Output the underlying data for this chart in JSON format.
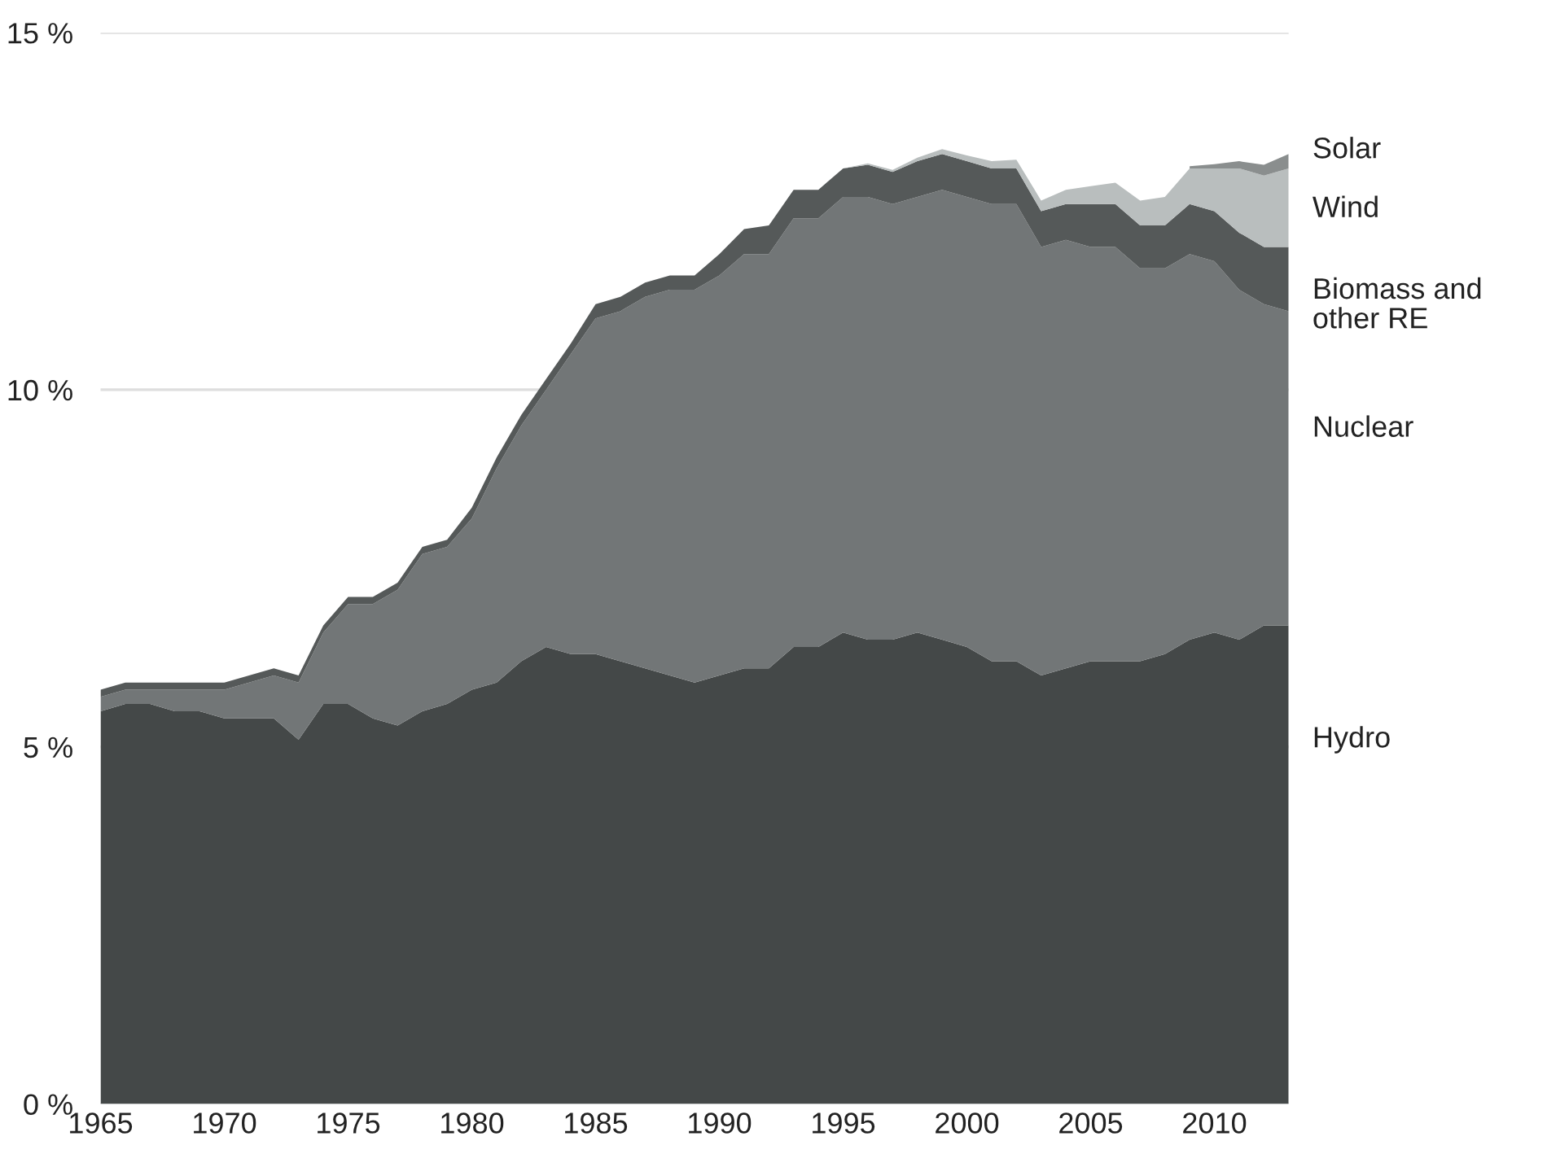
{
  "chart_data": {
    "type": "area",
    "stacked": true,
    "x": [
      1965,
      1966,
      1967,
      1968,
      1969,
      1970,
      1971,
      1972,
      1973,
      1974,
      1975,
      1976,
      1977,
      1978,
      1979,
      1980,
      1981,
      1982,
      1983,
      1984,
      1985,
      1986,
      1987,
      1988,
      1989,
      1990,
      1991,
      1992,
      1993,
      1994,
      1995,
      1996,
      1997,
      1998,
      1999,
      2000,
      2001,
      2002,
      2003,
      2004,
      2005,
      2006,
      2007,
      2008,
      2009,
      2010,
      2011,
      2012,
      2013
    ],
    "series": [
      {
        "name": "Hydro",
        "color": "#444848",
        "values": [
          5.5,
          5.6,
          5.6,
          5.5,
          5.5,
          5.4,
          5.4,
          5.4,
          5.1,
          5.6,
          5.6,
          5.4,
          5.3,
          5.5,
          5.6,
          5.8,
          5.9,
          6.2,
          6.4,
          6.3,
          6.3,
          6.2,
          6.1,
          6.0,
          5.9,
          6.0,
          6.1,
          6.1,
          6.4,
          6.4,
          6.6,
          6.5,
          6.5,
          6.6,
          6.5,
          6.4,
          6.2,
          6.2,
          6.0,
          6.1,
          6.2,
          6.2,
          6.2,
          6.3,
          6.5,
          6.6,
          6.5,
          6.7,
          6.7
        ]
      },
      {
        "name": "Nuclear",
        "color": "#727677",
        "values": [
          0.2,
          0.2,
          0.2,
          0.3,
          0.3,
          0.4,
          0.5,
          0.6,
          0.8,
          1.0,
          1.4,
          1.6,
          1.9,
          2.2,
          2.2,
          2.4,
          3.0,
          3.3,
          3.6,
          4.2,
          4.7,
          4.9,
          5.2,
          5.4,
          5.5,
          5.6,
          5.8,
          5.8,
          6.0,
          6.0,
          6.1,
          6.2,
          6.1,
          6.1,
          6.3,
          6.3,
          6.4,
          6.4,
          6.0,
          6.0,
          5.8,
          5.8,
          5.5,
          5.4,
          5.4,
          5.2,
          4.9,
          4.5,
          4.4
        ]
      },
      {
        "name": "Biomass and\nother RE",
        "color": "#555959",
        "values": [
          0.1,
          0.1,
          0.1,
          0.1,
          0.1,
          0.1,
          0.1,
          0.1,
          0.1,
          0.1,
          0.1,
          0.1,
          0.1,
          0.1,
          0.1,
          0.15,
          0.15,
          0.15,
          0.15,
          0.15,
          0.2,
          0.2,
          0.2,
          0.2,
          0.2,
          0.3,
          0.35,
          0.4,
          0.4,
          0.4,
          0.4,
          0.45,
          0.45,
          0.5,
          0.5,
          0.5,
          0.5,
          0.5,
          0.5,
          0.5,
          0.6,
          0.6,
          0.6,
          0.6,
          0.7,
          0.7,
          0.8,
          0.8,
          0.9
        ]
      },
      {
        "name": "Wind",
        "color": "#b9bebe",
        "values": [
          0,
          0,
          0,
          0,
          0,
          0,
          0,
          0,
          0,
          0,
          0,
          0,
          0,
          0,
          0,
          0,
          0,
          0,
          0,
          0,
          0,
          0,
          0,
          0,
          0,
          0,
          0,
          0,
          0,
          0,
          0,
          0.02,
          0.03,
          0.05,
          0.07,
          0.08,
          0.1,
          0.12,
          0.15,
          0.2,
          0.25,
          0.3,
          0.35,
          0.4,
          0.5,
          0.6,
          0.9,
          1.0,
          1.1
        ]
      },
      {
        "name": "Solar",
        "color": "#8a8e8e",
        "values": [
          null,
          null,
          null,
          null,
          null,
          null,
          null,
          null,
          null,
          null,
          null,
          null,
          null,
          null,
          null,
          null,
          null,
          null,
          null,
          null,
          null,
          null,
          null,
          null,
          null,
          null,
          null,
          null,
          null,
          null,
          null,
          null,
          null,
          null,
          null,
          null,
          null,
          null,
          null,
          null,
          null,
          null,
          null,
          null,
          0.03,
          0.06,
          0.1,
          0.15,
          0.2
        ]
      }
    ],
    "xlim": [
      1965,
      2013
    ],
    "xticks": [
      1965,
      1970,
      1975,
      1980,
      1985,
      1990,
      1995,
      2000,
      2005,
      2010
    ],
    "ylim": [
      0,
      15
    ],
    "yticks": [
      {
        "value": 0,
        "label": "0 %"
      },
      {
        "value": 5,
        "label": "5 %"
      },
      {
        "value": 10,
        "label": "10 %"
      },
      {
        "value": 15,
        "label": "15 %"
      }
    ],
    "grid": "y",
    "legend": false
  }
}
